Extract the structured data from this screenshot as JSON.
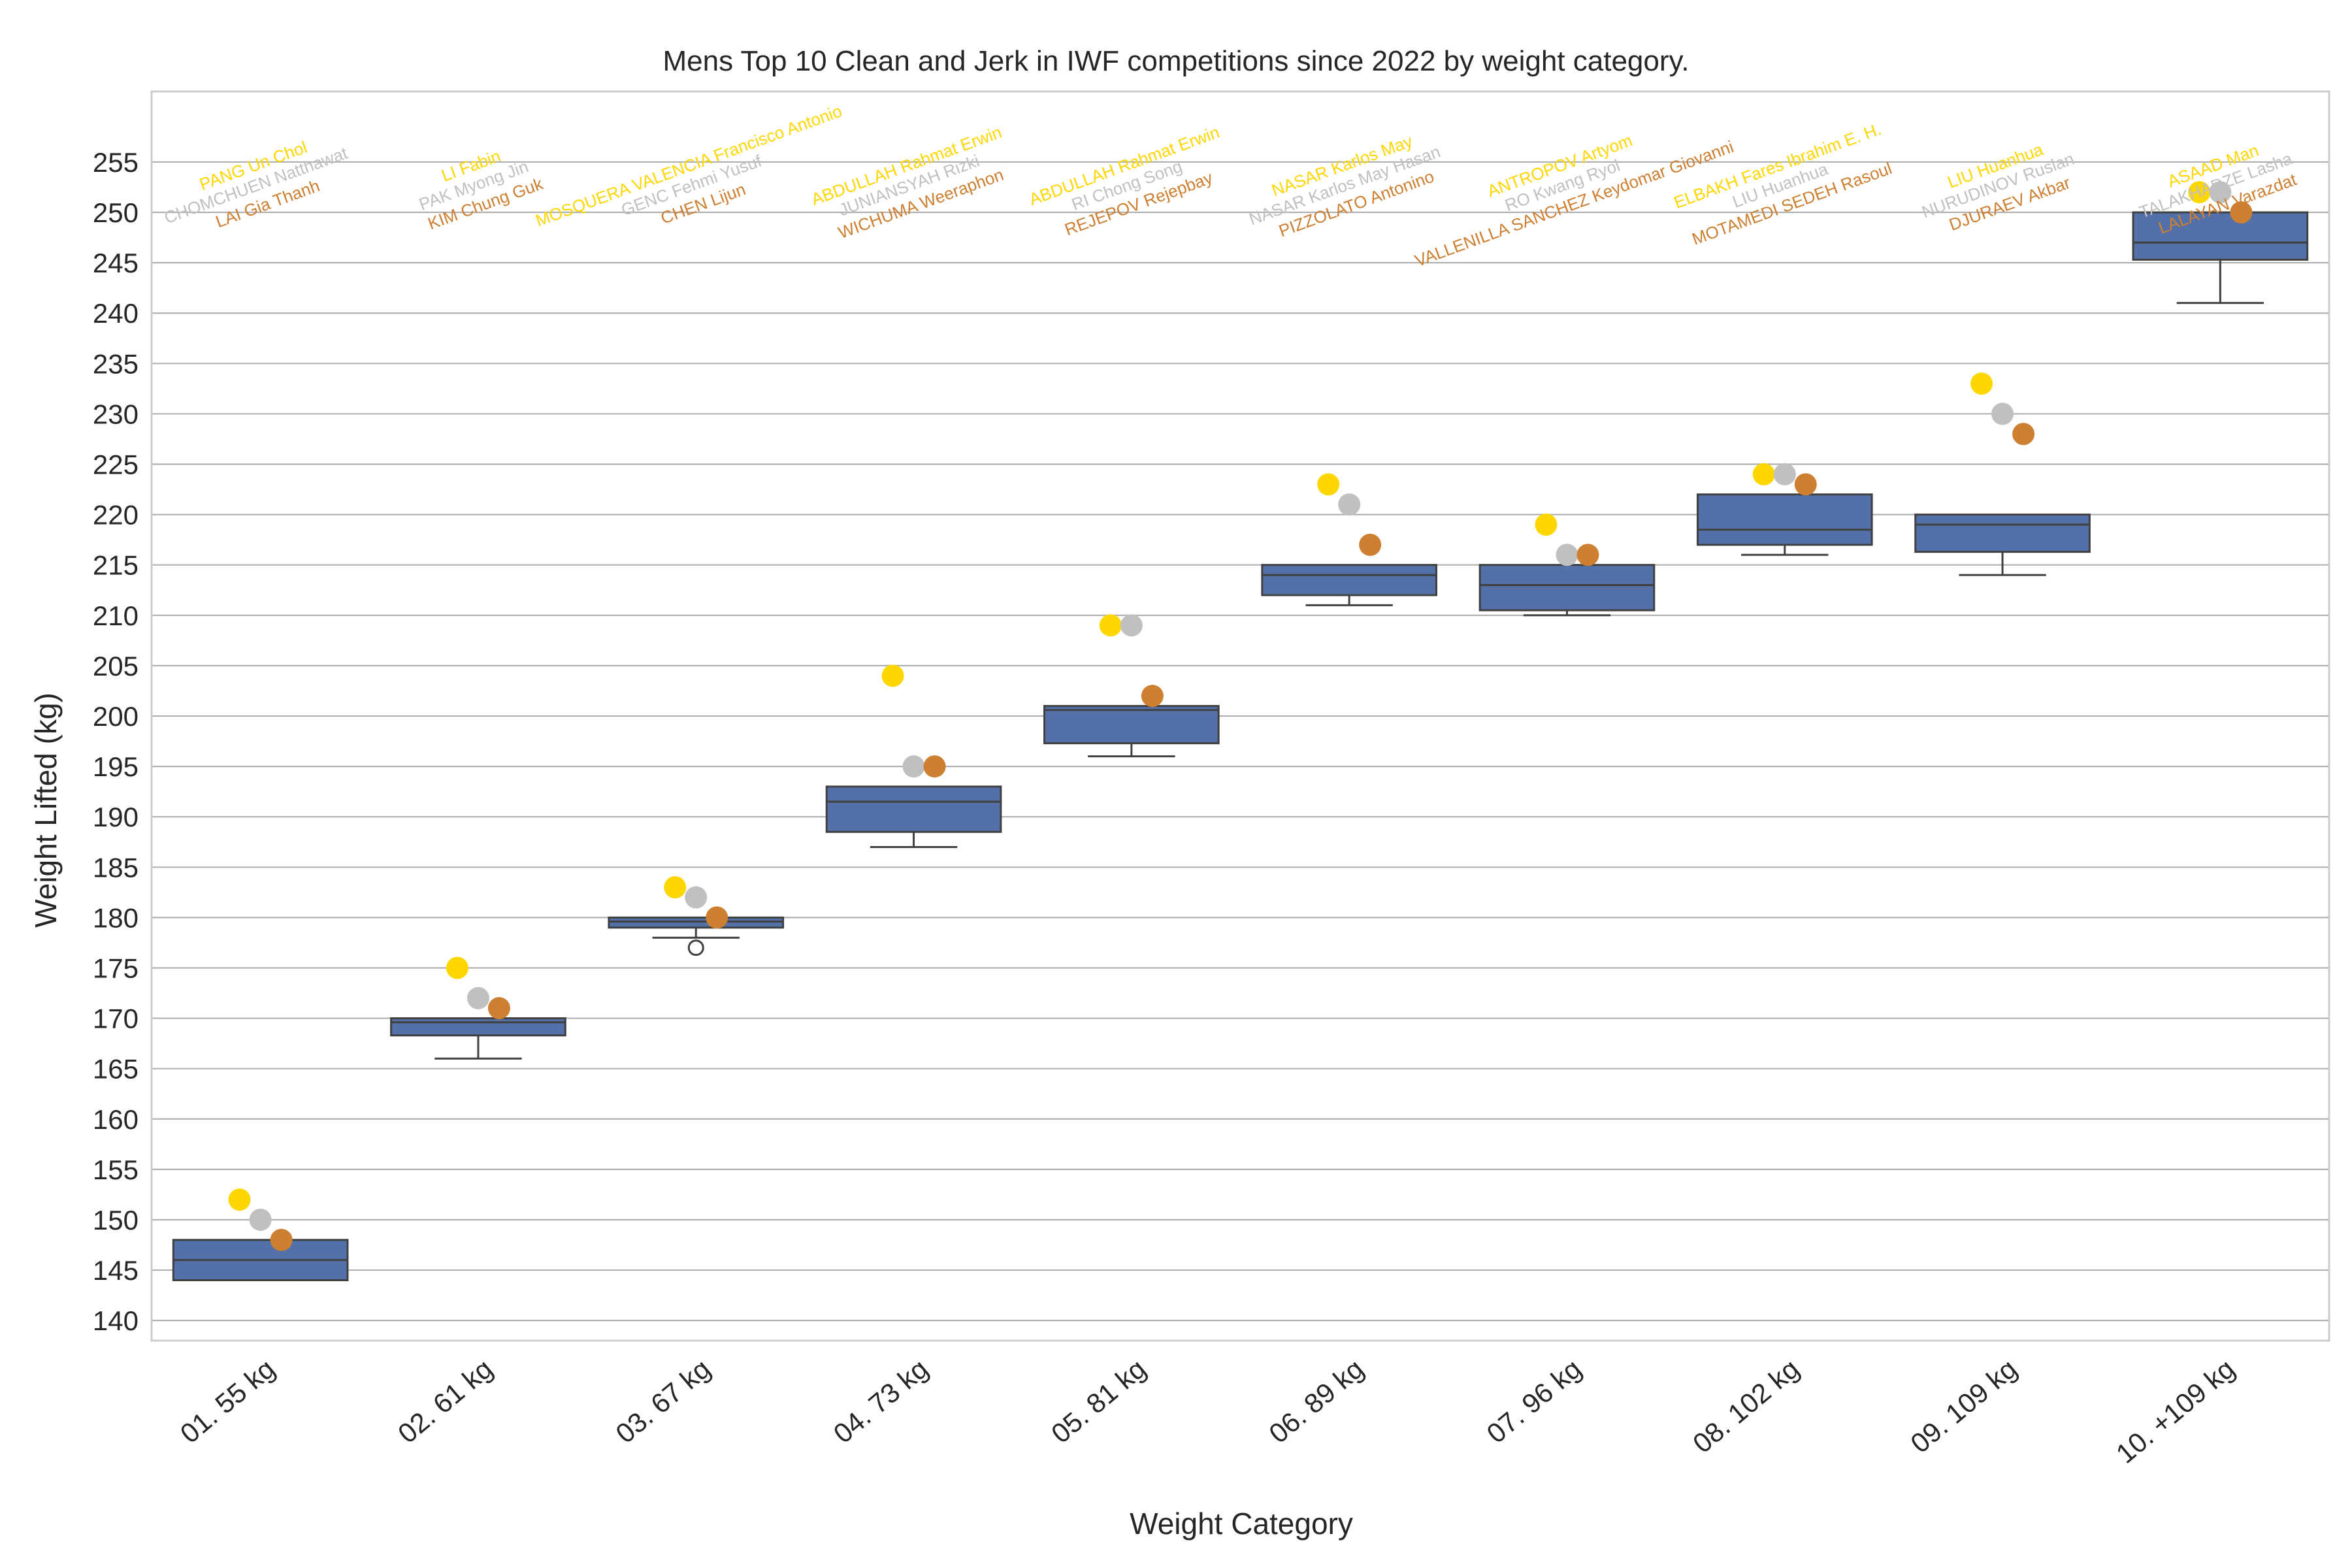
{
  "chart_data": {
    "type": "box",
    "title": "Mens Top 10 Clean and Jerk in IWF competitions since 2022 by weight category.",
    "xlabel": "Weight Category",
    "ylabel": "Weight Lifted (kg)",
    "ylim": [
      138,
      262
    ],
    "yticks": [
      140,
      145,
      150,
      155,
      160,
      165,
      170,
      175,
      180,
      185,
      190,
      195,
      200,
      205,
      210,
      215,
      220,
      225,
      230,
      235,
      240,
      245,
      250,
      255
    ],
    "grid": true,
    "medal_colors": {
      "gold": "#FFD700",
      "silver": "#C0C0C0",
      "bronze": "#CD7F32"
    },
    "box_color": "#5470a8",
    "categories": [
      {
        "label": "01. 55 kg",
        "box": {
          "whislo": 144,
          "q1": 144,
          "med": 146,
          "q3": 148,
          "whishi": 148,
          "fliers": []
        },
        "medals": {
          "gold": 152,
          "silver": 150,
          "bronze": 148
        },
        "names": [
          "PANG Un Chol",
          "CHOMCHUEN Natthawat",
          "LAI Gia Thanh"
        ]
      },
      {
        "label": "02. 61 kg",
        "box": {
          "whislo": 166,
          "q1": 168.3,
          "med": 169.6,
          "q3": 170,
          "whishi": 170,
          "fliers": []
        },
        "medals": {
          "gold": 175,
          "silver": 172,
          "bronze": 171
        },
        "names": [
          "LI Fabin",
          "PAK Myong Jin",
          "KIM Chung Guk"
        ]
      },
      {
        "label": "03. 67 kg",
        "box": {
          "whislo": 178,
          "q1": 179,
          "med": 179.6,
          "q3": 180,
          "whishi": 180,
          "fliers": [
            177
          ]
        },
        "medals": {
          "gold": 183,
          "silver": 182,
          "bronze": 180
        },
        "names": [
          "MOSQUERA VALENCIA Francisco Antonio",
          "GENC Fehmi Yusuf",
          "CHEN Lijun"
        ]
      },
      {
        "label": "04. 73 kg",
        "box": {
          "whislo": 187,
          "q1": 188.5,
          "med": 191.5,
          "q3": 193,
          "whishi": 193,
          "fliers": []
        },
        "medals": {
          "gold": 204,
          "silver": 195,
          "bronze": 195
        },
        "names": [
          "ABDULLAH Rahmat Erwin",
          "JUNIANSYAH Rizki",
          "WICHUMA Weeraphon"
        ]
      },
      {
        "label": "05. 81 kg",
        "box": {
          "whislo": 196,
          "q1": 197.3,
          "med": 200.6,
          "q3": 201,
          "whishi": 201,
          "fliers": []
        },
        "medals": {
          "gold": 209,
          "silver": 209,
          "bronze": 202
        },
        "names": [
          "ABDULLAH Rahmat Erwin",
          "RI Chong Song",
          "REJEPOV Rejepbay"
        ]
      },
      {
        "label": "06. 89 kg",
        "box": {
          "whislo": 211,
          "q1": 212,
          "med": 214,
          "q3": 215,
          "whishi": 215,
          "fliers": []
        },
        "medals": {
          "gold": 223,
          "silver": 221,
          "bronze": 217
        },
        "names": [
          "NASAR Karlos May",
          "NASAR Karlos May Hasan",
          "PIZZOLATO Antonino"
        ]
      },
      {
        "label": "07. 96 kg",
        "box": {
          "whislo": 210,
          "q1": 210.5,
          "med": 213,
          "q3": 215,
          "whishi": 215,
          "fliers": []
        },
        "medals": {
          "gold": 219,
          "silver": 216,
          "bronze": 216
        },
        "names": [
          "ANTROPOV Artyom",
          "RO Kwang Ryol",
          "VALLENILLA SANCHEZ Keydomar Giovanni"
        ]
      },
      {
        "label": "08. 102 kg",
        "box": {
          "whislo": 216,
          "q1": 217,
          "med": 218.5,
          "q3": 222,
          "whishi": 222,
          "fliers": []
        },
        "medals": {
          "gold": 224,
          "silver": 224,
          "bronze": 223
        },
        "names": [
          "ELBAKH Fares Ibrahim E. H.",
          "LIU Huanhua",
          "MOTAMEDI SEDEH Rasoul"
        ]
      },
      {
        "label": "09. 109 kg",
        "box": {
          "whislo": 214,
          "q1": 216.3,
          "med": 219,
          "q3": 220,
          "whishi": 220,
          "fliers": []
        },
        "medals": {
          "gold": 233,
          "silver": 230,
          "bronze": 228
        },
        "names": [
          "LIU Huanhua",
          "NURUDINOV Ruslan",
          "DJURAEV Akbar"
        ]
      },
      {
        "label": "10. +109 kg",
        "box": {
          "whislo": 241,
          "q1": 245.3,
          "med": 247,
          "q3": 250,
          "whishi": 250,
          "fliers": []
        },
        "medals": {
          "gold": 252,
          "silver": 252,
          "bronze": 250
        },
        "names": [
          "ASAAD Man",
          "TALAKHADZE Lasha",
          "LALAYAN Varazdat"
        ]
      }
    ]
  }
}
